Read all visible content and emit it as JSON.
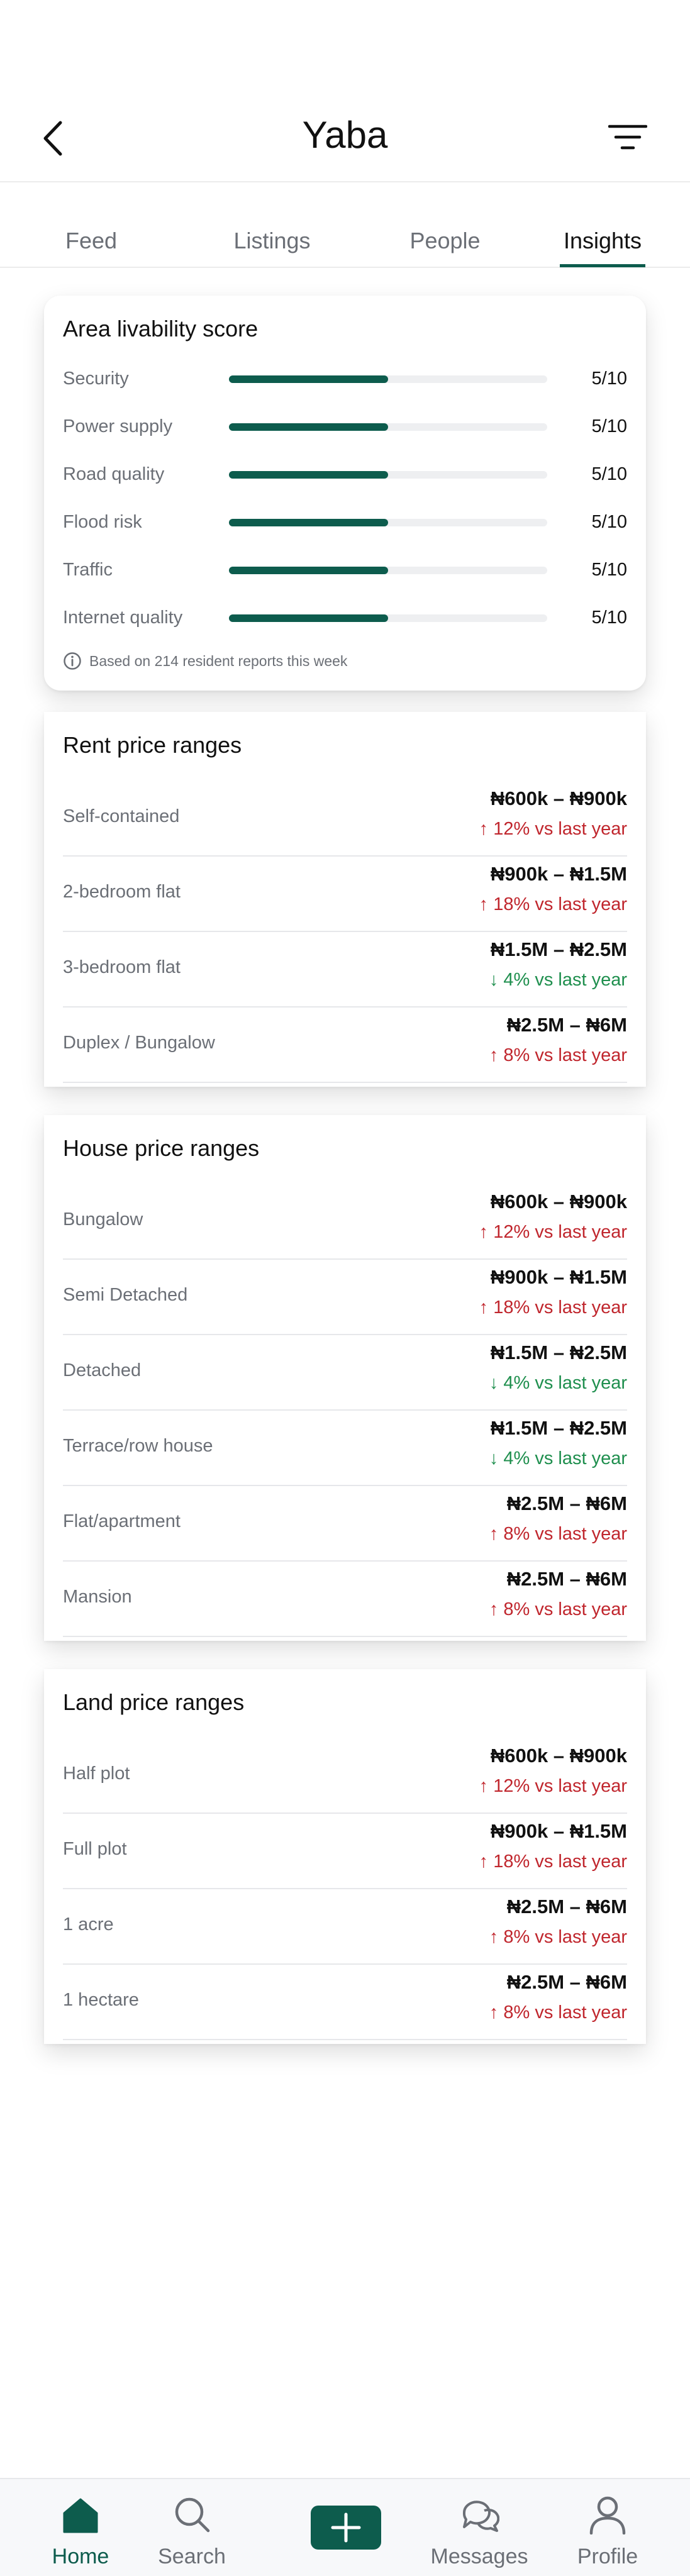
{
  "header": {
    "title": "Yaba"
  },
  "tabs": [
    {
      "label": "Feed"
    },
    {
      "label": "Listings"
    },
    {
      "label": "People"
    },
    {
      "label": "Insights"
    }
  ],
  "livability": {
    "title": "Area livability score",
    "items": [
      {
        "label": "Security",
        "value": "5/10",
        "score": 0.5
      },
      {
        "label": "Power supply",
        "value": "5/10",
        "score": 0.5
      },
      {
        "label": "Road quality",
        "value": "5/10",
        "score": 0.5
      },
      {
        "label": "Flood risk",
        "value": "5/10",
        "score": 0.5
      },
      {
        "label": "Traffic",
        "value": "5/10",
        "score": 0.5
      },
      {
        "label": "Internet quality",
        "value": "5/10",
        "score": 0.5
      }
    ],
    "footnote": "Based on 214 resident reports this week"
  },
  "rent": {
    "title": "Rent price ranges",
    "items": [
      {
        "label": "Self-contained",
        "range": "₦600k – ₦900k",
        "change": "↑ 12% vs last year",
        "direction": "up"
      },
      {
        "label": "2-bedroom flat",
        "range": "₦900k – ₦1.5M",
        "change": "↑ 18% vs last year",
        "direction": "up"
      },
      {
        "label": "3-bedroom flat",
        "range": "₦1.5M – ₦2.5M",
        "change": "↓ 4% vs last year",
        "direction": "down"
      },
      {
        "label": "Duplex / Bungalow",
        "range": "₦2.5M – ₦6M",
        "change": "↑ 8% vs last year",
        "direction": "up"
      }
    ]
  },
  "house": {
    "title": "House price ranges",
    "items": [
      {
        "label": "Bungalow",
        "range": "₦600k – ₦900k",
        "change": "↑ 12% vs last year",
        "direction": "up"
      },
      {
        "label": "Semi Detached",
        "range": "₦900k – ₦1.5M",
        "change": "↑ 18% vs last year",
        "direction": "up"
      },
      {
        "label": "Detached",
        "range": "₦1.5M – ₦2.5M",
        "change": "↓ 4% vs last year",
        "direction": "down"
      },
      {
        "label": "Terrace/row house",
        "range": "₦1.5M – ₦2.5M",
        "change": "↓ 4% vs last year",
        "direction": "down"
      },
      {
        "label": "Flat/apartment",
        "range": "₦2.5M – ₦6M",
        "change": "↑ 8% vs last year",
        "direction": "up"
      },
      {
        "label": "Mansion",
        "range": "₦2.5M – ₦6M",
        "change": "↑ 8% vs last year",
        "direction": "up"
      }
    ]
  },
  "land": {
    "title": "Land price ranges",
    "items": [
      {
        "label": "Half plot",
        "range": "₦600k – ₦900k",
        "change": "↑ 12% vs last year",
        "direction": "up"
      },
      {
        "label": "Full plot",
        "range": "₦900k – ₦1.5M",
        "change": "↑ 18% vs last year",
        "direction": "up"
      },
      {
        "label": "1 acre",
        "range": "₦2.5M – ₦6M",
        "change": "↑ 8% vs last year",
        "direction": "up"
      },
      {
        "label": "1 hectare",
        "range": "₦2.5M – ₦6M",
        "change": "↑ 8% vs last year",
        "direction": "up"
      }
    ]
  },
  "bottom_nav": {
    "home": "Home",
    "search": "Search",
    "messages": "Messages",
    "profile": "Profile"
  },
  "colors": {
    "accent": "#0d5c4d",
    "up": "#c0262d",
    "down": "#1f8f4e"
  }
}
